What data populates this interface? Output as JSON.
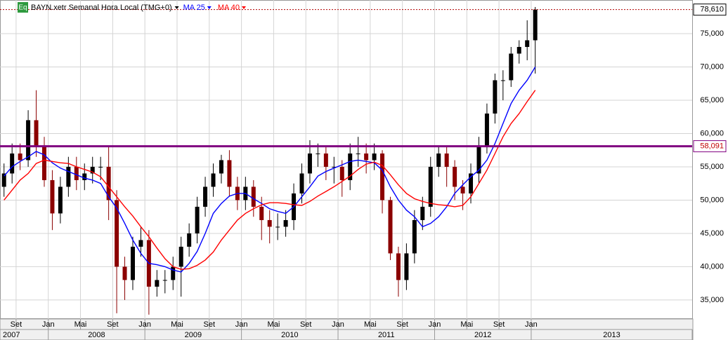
{
  "chart_data": {
    "type": "candlestick",
    "badge": "Eq",
    "title": "BAYN.xetr Semanal Hora Local (TMG+0)",
    "x": [
      "2007-07",
      "2007-08",
      "2007-09",
      "2007-10",
      "2007-11",
      "2007-12",
      "2008-01",
      "2008-02",
      "2008-03",
      "2008-04",
      "2008-05",
      "2008-06",
      "2008-07",
      "2008-08",
      "2008-09",
      "2008-10",
      "2008-11",
      "2008-12",
      "2009-01",
      "2009-02",
      "2009-03",
      "2009-04",
      "2009-05",
      "2009-06",
      "2009-07",
      "2009-08",
      "2009-09",
      "2009-10",
      "2009-11",
      "2009-12",
      "2010-01",
      "2010-02",
      "2010-03",
      "2010-04",
      "2010-05",
      "2010-06",
      "2010-07",
      "2010-08",
      "2010-09",
      "2010-10",
      "2010-11",
      "2010-12",
      "2011-01",
      "2011-02",
      "2011-03",
      "2011-04",
      "2011-05",
      "2011-06",
      "2011-07",
      "2011-08",
      "2011-09",
      "2011-10",
      "2011-11",
      "2011-12",
      "2012-01",
      "2012-02",
      "2012-03",
      "2012-04",
      "2012-05",
      "2012-06",
      "2012-07",
      "2012-08",
      "2012-09",
      "2012-10",
      "2012-11",
      "2012-12",
      "2013-01"
    ],
    "open": [
      52,
      54,
      57,
      56,
      62,
      58,
      53,
      48,
      52,
      55,
      53,
      54,
      55,
      55,
      50,
      40,
      38,
      43,
      44,
      37,
      38,
      38,
      40,
      43,
      45,
      49,
      52,
      54,
      56,
      52,
      50,
      52,
      49,
      47,
      46,
      46,
      47,
      51,
      54,
      57,
      57,
      55,
      55,
      53,
      57,
      57,
      56,
      57,
      50,
      42,
      38,
      42,
      47,
      49,
      55,
      57,
      55,
      52,
      51,
      54,
      58,
      63,
      68,
      68,
      72,
      73,
      74
    ],
    "high": [
      55.5,
      58.5,
      58.5,
      63.5,
      66.5,
      59.5,
      54.5,
      53.5,
      56.5,
      56.5,
      55.5,
      56.5,
      56.5,
      58,
      51.5,
      41.5,
      44.5,
      46,
      45.5,
      39.5,
      39.5,
      41.5,
      44.5,
      46.5,
      50.5,
      53.5,
      55.5,
      56.8,
      57.5,
      53.5,
      53.5,
      53,
      50.5,
      48.5,
      48,
      48.5,
      52.5,
      55.5,
      59,
      58.5,
      58,
      56.5,
      56,
      58.5,
      59.5,
      58.5,
      58.5,
      57.5,
      50.5,
      43,
      43.5,
      48.5,
      50.5,
      56.5,
      58,
      58,
      56,
      53,
      55.5,
      59.5,
      64.5,
      69,
      69.5,
      73,
      74,
      77,
      79
    ],
    "low": [
      50.5,
      52.5,
      54.5,
      55,
      56.5,
      52,
      45.5,
      46.5,
      50.5,
      51.5,
      51.5,
      52.5,
      53,
      47,
      33,
      35,
      36.5,
      41.5,
      32.8,
      35.5,
      36,
      36.5,
      35.5,
      41.5,
      43.5,
      47.5,
      50.5,
      52.5,
      50.5,
      48.5,
      48.5,
      47.5,
      44,
      43.5,
      44,
      44.5,
      45.5,
      49.5,
      52.5,
      55,
      53,
      52.5,
      50.5,
      51.5,
      55,
      54,
      54.5,
      48,
      41,
      35.5,
      36.5,
      40.5,
      45.5,
      47.5,
      53.5,
      52,
      50,
      48.5,
      49.5,
      52.5,
      57,
      61.5,
      65,
      67,
      70.5,
      71,
      69
    ],
    "close": [
      54,
      57,
      56,
      62,
      58,
      53,
      48,
      52,
      55,
      53,
      54,
      55,
      55,
      50,
      40,
      38,
      43,
      44,
      37,
      38,
      38,
      40,
      43,
      45,
      49,
      52,
      54,
      56,
      52,
      50,
      52,
      49,
      47,
      46,
      46,
      47,
      51,
      54,
      57,
      57,
      55,
      55,
      53,
      57,
      57,
      56,
      57,
      50,
      42,
      38,
      42,
      47,
      49,
      55,
      57,
      55,
      52,
      51,
      54,
      58,
      63,
      68,
      68,
      72,
      73,
      74,
      78.61
    ],
    "up_color": "#000000",
    "down_color": "#8b0000",
    "series": [
      {
        "name": "MA 25",
        "color": "#0000ff",
        "values": [
          53.6,
          55,
          55.8,
          56.5,
          57.3,
          56.8,
          55.6,
          54.8,
          54.3,
          53.8,
          53.3,
          53,
          52.5,
          50.5,
          48.8,
          46.5,
          44,
          42,
          40.5,
          40.3,
          40,
          39.5,
          39.2,
          40.5,
          42.3,
          45,
          48,
          49.5,
          50.6,
          51,
          51,
          50.2,
          49.5,
          48.7,
          48.3,
          48,
          49,
          50.5,
          52,
          53.6,
          54.3,
          54.8,
          55.3,
          55.8,
          56,
          55.8,
          55.6,
          54.5,
          52,
          50,
          48.5,
          47.5,
          46,
          46.5,
          47.5,
          49,
          51,
          52.3,
          53.5,
          54.5,
          56,
          58.5,
          61.5,
          64.5,
          66.5,
          68,
          70
        ]
      },
      {
        "name": "MA 40",
        "color": "#ff0000",
        "values": [
          50,
          51.5,
          53,
          54,
          55.5,
          56,
          55.8,
          55.6,
          55.5,
          55,
          54.6,
          54.2,
          53.5,
          52,
          50.5,
          49,
          47.6,
          46,
          44.5,
          42.8,
          41.2,
          40,
          39.6,
          39.7,
          40.2,
          41,
          42.2,
          44,
          45.5,
          47,
          48,
          48.7,
          49.3,
          49.6,
          49.6,
          49.5,
          49.3,
          49.2,
          49.8,
          50.6,
          51.3,
          52,
          52.8,
          53.6,
          54.6,
          55.4,
          55.7,
          55.2,
          53.8,
          52.3,
          51,
          50.2,
          49.8,
          49.5,
          49.3,
          49.2,
          49,
          49.2,
          50.5,
          52.5,
          54.5,
          57,
          59.5,
          61.5,
          63,
          64.8,
          66.5
        ]
      }
    ],
    "xlim": [
      "2007-07",
      "2014-09"
    ],
    "xticks": [
      {
        "value": "2007-09",
        "label": "Set"
      },
      {
        "value": "2008-01",
        "label": "Jan"
      },
      {
        "value": "2008-05",
        "label": "Mai"
      },
      {
        "value": "2008-09",
        "label": "Set"
      },
      {
        "value": "2009-01",
        "label": "Jan"
      },
      {
        "value": "2009-05",
        "label": "Mai"
      },
      {
        "value": "2009-09",
        "label": "Set"
      },
      {
        "value": "2010-01",
        "label": "Jan"
      },
      {
        "value": "2010-05",
        "label": "Mai"
      },
      {
        "value": "2010-09",
        "label": "Set"
      },
      {
        "value": "2011-01",
        "label": "Jan"
      },
      {
        "value": "2011-05",
        "label": "Mai"
      },
      {
        "value": "2011-09",
        "label": "Set"
      },
      {
        "value": "2012-01",
        "label": "Jan"
      },
      {
        "value": "2012-05",
        "label": "Mai"
      },
      {
        "value": "2012-09",
        "label": "Set"
      },
      {
        "value": "2013-01",
        "label": "Jan"
      }
    ],
    "years": [
      "2007",
      "2008",
      "2009",
      "2010",
      "2011",
      "2012",
      "2013"
    ],
    "ylim": [
      32.15,
      80.05
    ],
    "yticks": [
      {
        "value": 35,
        "label": "35,000"
      },
      {
        "value": 40,
        "label": "40,000"
      },
      {
        "value": 45,
        "label": "45,000"
      },
      {
        "value": 50,
        "label": "50,000"
      },
      {
        "value": 55,
        "label": "55,000"
      },
      {
        "value": 60,
        "label": "60,000"
      },
      {
        "value": 65,
        "label": "65,000"
      },
      {
        "value": 70,
        "label": "70,000"
      },
      {
        "value": 75,
        "label": "75,000"
      }
    ],
    "last_price": {
      "value": 78.61,
      "label": "78,610",
      "color": "#b00000"
    },
    "hline": {
      "value": 58.091,
      "label": "58,091",
      "color": "#800080"
    },
    "grid": true
  }
}
